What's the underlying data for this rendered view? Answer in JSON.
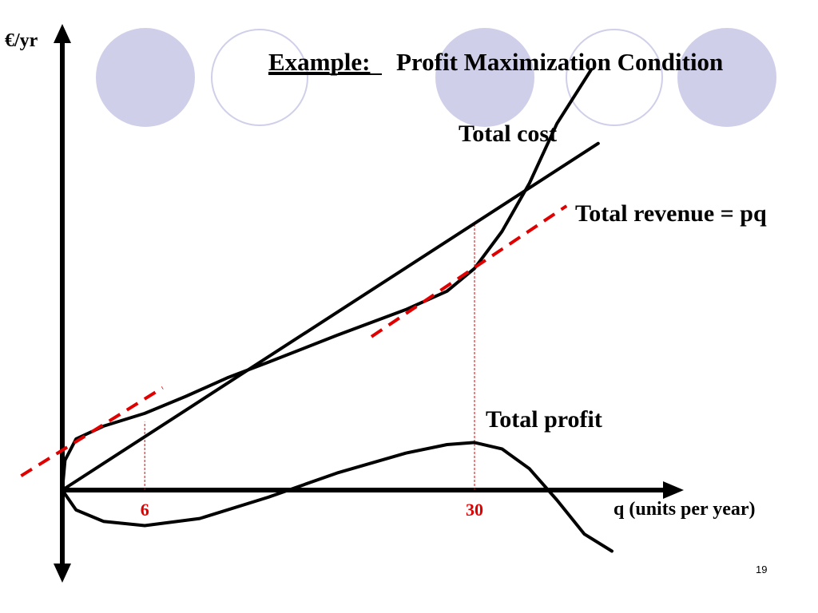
{
  "slide": {
    "title_prefix": "Example:",
    "title_rest": "Profit Maximization Condition",
    "page_number": "19",
    "decor_circles": [
      "filled",
      "outline",
      "filled",
      "outline",
      "filled"
    ],
    "decor_fill_color": "#cfcfea",
    "decor_outline_color": "#cfcfea"
  },
  "chart_data": {
    "type": "line",
    "ylabel": "€/yr",
    "xlabel": "q (units per year)",
    "x_ticks": [
      {
        "value": 6,
        "label": "6",
        "color": "#e00000"
      },
      {
        "value": 30,
        "label": "30",
        "color": "#e00000"
      }
    ],
    "curve_labels": {
      "total_cost": "Total cost",
      "total_revenue": "Total revenue = pq",
      "total_profit": "Total profit"
    },
    "series": [
      {
        "key": "total_revenue",
        "points": [
          [
            0,
            0
          ],
          [
            39,
            24.4
          ]
        ]
      },
      {
        "key": "total_cost",
        "points": [
          [
            0,
            0
          ],
          [
            0.2,
            2.1
          ],
          [
            1,
            3.6
          ],
          [
            3,
            4.5
          ],
          [
            6,
            5.4
          ],
          [
            9,
            6.6
          ],
          [
            12,
            7.9
          ],
          [
            15,
            9.0
          ],
          [
            20,
            10.9
          ],
          [
            25,
            12.7
          ],
          [
            28,
            14.0
          ],
          [
            30,
            15.6
          ],
          [
            32,
            18.2
          ],
          [
            34,
            21.6
          ],
          [
            36,
            25.8
          ],
          [
            38.5,
            29.6
          ]
        ]
      },
      {
        "key": "total_profit",
        "points": [
          [
            0,
            0
          ],
          [
            1,
            -1.4
          ],
          [
            3,
            -2.2
          ],
          [
            6,
            -2.5
          ],
          [
            10,
            -2.0
          ],
          [
            15,
            -0.5
          ],
          [
            20,
            1.2
          ],
          [
            25,
            2.6
          ],
          [
            28,
            3.2
          ],
          [
            30,
            3.35
          ],
          [
            32,
            2.9
          ],
          [
            34,
            1.5
          ],
          [
            36,
            -0.7
          ],
          [
            38,
            -3.1
          ],
          [
            40,
            -4.3
          ]
        ]
      }
    ],
    "tangent_lines": [
      {
        "color": "#e00000",
        "dash": true,
        "at_x": 6,
        "points": [
          [
            -3,
            1.0
          ],
          [
            7.3,
            7.2
          ]
        ]
      },
      {
        "color": "#e00000",
        "dash": true,
        "at_x": 30,
        "points": [
          [
            22.5,
            10.8
          ],
          [
            36.7,
            20.0
          ]
        ]
      }
    ],
    "guide_lines": [
      {
        "color": "#e00000",
        "x": 6,
        "y_from": 0,
        "y_to": 4.8
      },
      {
        "color": "#e00000",
        "x": 30,
        "y_from": 0,
        "y_to": 18.7
      }
    ],
    "axis_color": "#000000",
    "curve_color": "#000000"
  }
}
